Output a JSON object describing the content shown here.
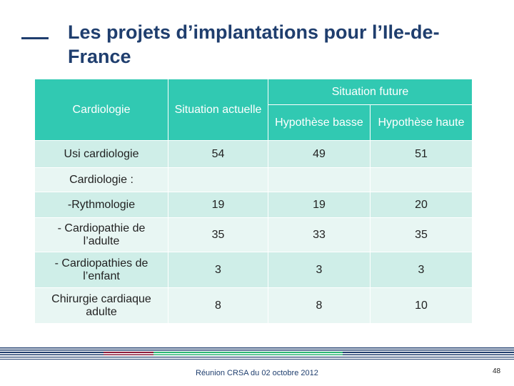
{
  "title": "Les projets d’implantations pour l’Ile-de-France",
  "table": {
    "header": {
      "category": "Cardiologie",
      "current": "Situation actuelle",
      "future": "Situation future",
      "low": "Hypothèse basse",
      "high": "Hypothèse haute"
    },
    "rows": [
      {
        "label": "Usi cardiologie",
        "current": "54",
        "low": "49",
        "high": "51"
      },
      {
        "label": "Cardiologie :",
        "current": "",
        "low": "",
        "high": ""
      },
      {
        "label": "-Rythmologie",
        "current": "19",
        "low": "19",
        "high": "20"
      },
      {
        "label": "- Cardiopathie de l’adulte",
        "current": "35",
        "low": "33",
        "high": "35"
      },
      {
        "label": "- Cardiopathies de l’enfant",
        "current": "3",
        "low": "3",
        "high": "3"
      },
      {
        "label": "Chirurgie cardiaque adulte",
        "current": "8",
        "low": "8",
        "high": "10"
      }
    ]
  },
  "footer": {
    "text": "Réunion CRSA du 02 octobre 2012",
    "page": "48"
  },
  "colors": {
    "title": "#1f3e6e",
    "header": "#31c9b2",
    "row_dark": "#cfeee8",
    "row_light": "#e8f6f3"
  }
}
